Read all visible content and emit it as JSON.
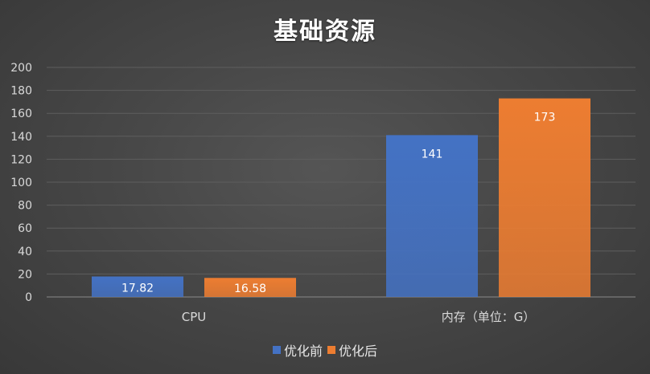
{
  "chart_data": {
    "type": "bar",
    "title": "基础资源",
    "categories": [
      "CPU",
      "内存（单位：G）"
    ],
    "series": [
      {
        "name": "优化前",
        "values": [
          17.82,
          141
        ],
        "color": "#4472C4"
      },
      {
        "name": "优化后",
        "values": [
          16.58,
          173
        ],
        "color": "#ED7D31"
      }
    ],
    "ylim": [
      0,
      200
    ],
    "yticks": [
      "0",
      "20",
      "40",
      "60",
      "80",
      "100",
      "120",
      "140",
      "160",
      "180",
      "200"
    ],
    "data_labels": [
      [
        "17.82",
        "141"
      ],
      [
        "16.58",
        "173"
      ]
    ],
    "grid": true,
    "legend_position": "bottom"
  }
}
